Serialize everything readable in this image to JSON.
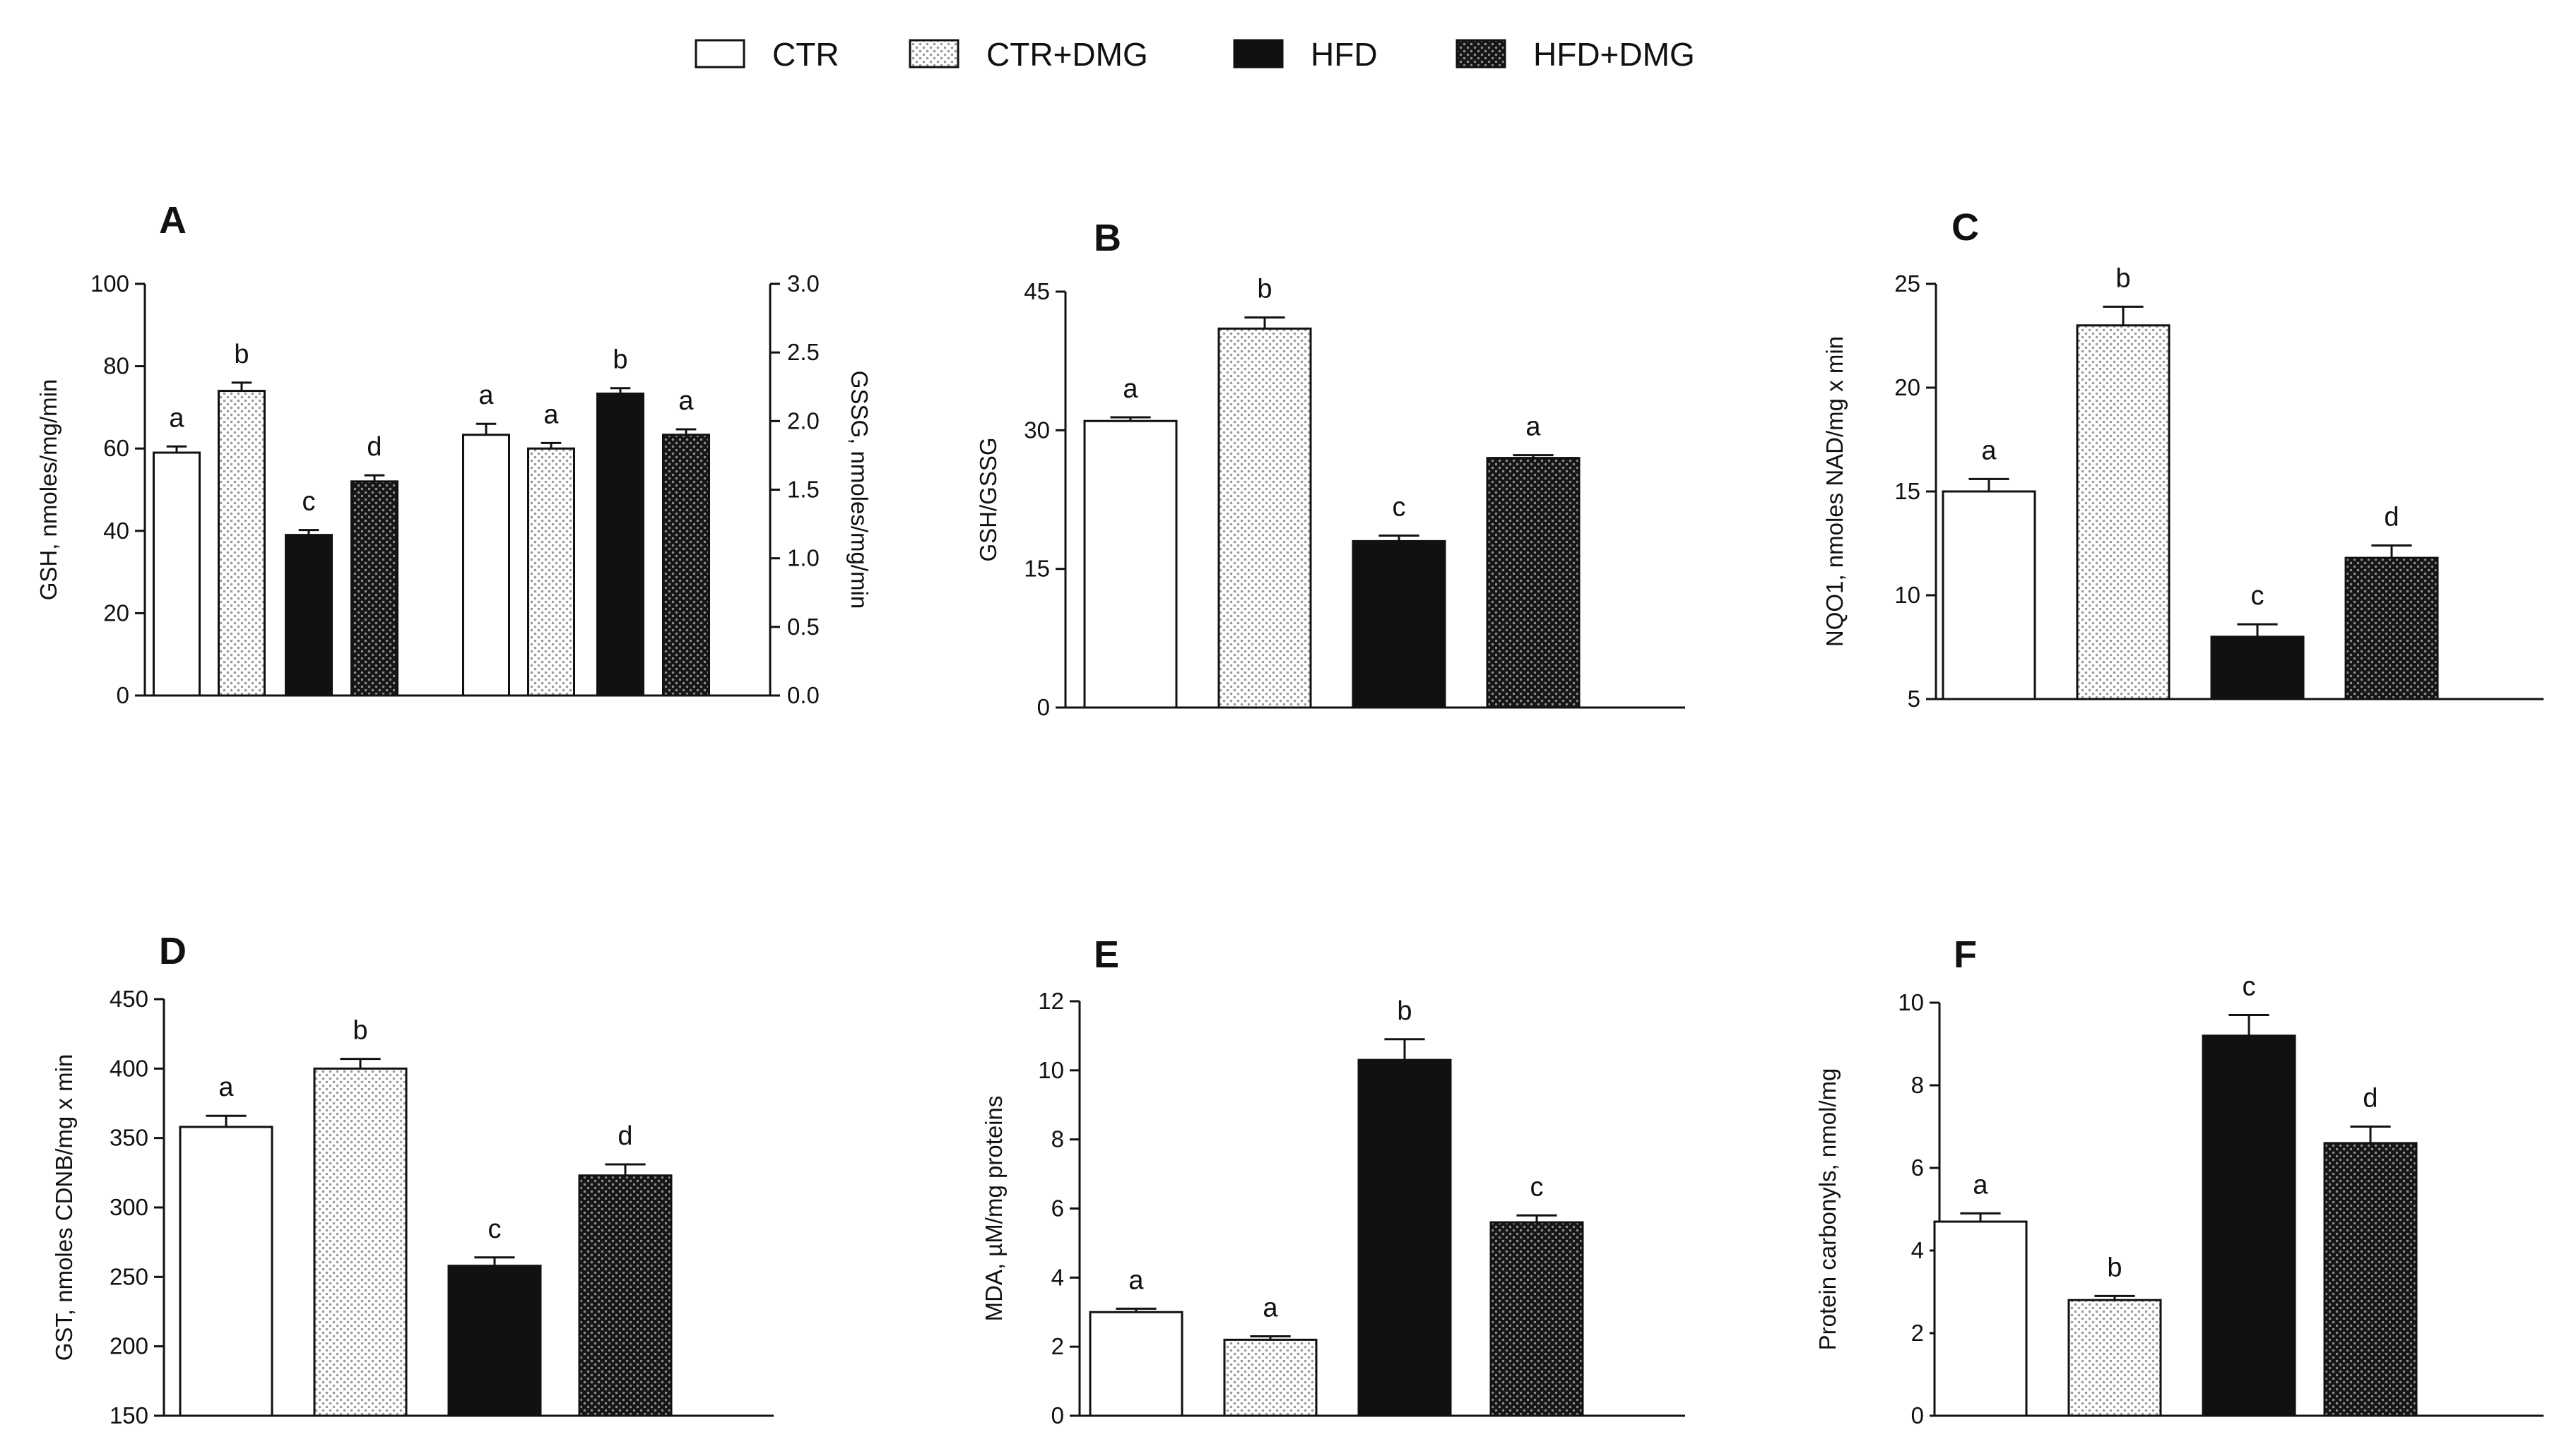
{
  "colors": {
    "black": "#111111",
    "white": "#ffffff",
    "light_pattern": "#bdbdbd",
    "dark_pattern": "#8a8a8a"
  },
  "legend": [
    {
      "label": "CTR",
      "pattern": "white"
    },
    {
      "label": "CTR+DMG",
      "pattern": "light"
    },
    {
      "label": "HFD",
      "pattern": "black"
    },
    {
      "label": "HFD+DMG",
      "pattern": "dark"
    }
  ],
  "chart_data": [
    {
      "panel": "A",
      "type": "bar",
      "categories": [
        "CTR",
        "CTR+DMG",
        "HFD",
        "HFD+DMG"
      ],
      "series": [
        {
          "name": "GSH",
          "axis": "left",
          "values": [
            59,
            74,
            39,
            52
          ],
          "errors": [
            1.5,
            2,
            1.2,
            1.5
          ],
          "letters": [
            "a",
            "b",
            "c",
            "d"
          ]
        },
        {
          "name": "GSSG",
          "axis": "right",
          "values": [
            1.9,
            1.8,
            2.2,
            1.9
          ],
          "errors": [
            0.08,
            0.04,
            0.04,
            0.04
          ],
          "letters": [
            "a",
            "a",
            "b",
            "a"
          ]
        }
      ],
      "ylabel": "GSH, nmoles/mg/min",
      "ylim": [
        0,
        100
      ],
      "yticks": [
        "0",
        "20",
        "40",
        "60",
        "80",
        "100"
      ],
      "y2label": "GSSG, nmoles/mg/min",
      "y2lim": [
        0,
        3.0
      ],
      "y2ticks": [
        "0.0",
        "0.5",
        "1.0",
        "1.5",
        "2.0",
        "2.5",
        "3.0"
      ]
    },
    {
      "panel": "B",
      "type": "bar",
      "categories": [
        "CTR",
        "CTR+DMG",
        "HFD",
        "HFD+DMG"
      ],
      "values": [
        31,
        41,
        18,
        27
      ],
      "errors": [
        0.4,
        1.2,
        0.6,
        0.3
      ],
      "letters": [
        "a",
        "b",
        "c",
        "a"
      ],
      "ylabel": "GSH/GSSG",
      "ylim": [
        0,
        45
      ],
      "yticks": [
        "0",
        "15",
        "30",
        "45"
      ]
    },
    {
      "panel": "C",
      "type": "bar",
      "categories": [
        "CTR",
        "CTR+DMG",
        "HFD",
        "HFD+DMG"
      ],
      "values": [
        15,
        23,
        8,
        11.8
      ],
      "errors": [
        0.6,
        0.9,
        0.6,
        0.6
      ],
      "letters": [
        "a",
        "b",
        "c",
        "d"
      ],
      "ylabel": "NQO1, nmoles NAD/mg x min",
      "ylim": [
        5,
        25
      ],
      "yticks": [
        "5",
        "10",
        "15",
        "20",
        "25"
      ]
    },
    {
      "panel": "D",
      "type": "bar",
      "categories": [
        "CTR",
        "CTR+DMG",
        "HFD",
        "HFD+DMG"
      ],
      "values": [
        358,
        400,
        258,
        323
      ],
      "errors": [
        8,
        7,
        6,
        8
      ],
      "letters": [
        "a",
        "b",
        "c",
        "d"
      ],
      "ylabel": "GST, nmoles CDNB/mg x min",
      "ylim": [
        150,
        450
      ],
      "yticks": [
        "150",
        "200",
        "250",
        "300",
        "350",
        "400",
        "450"
      ]
    },
    {
      "panel": "E",
      "type": "bar",
      "categories": [
        "CTR",
        "CTR+DMG",
        "HFD",
        "HFD+DMG"
      ],
      "values": [
        3.0,
        2.2,
        10.3,
        5.6
      ],
      "errors": [
        0.1,
        0.1,
        0.6,
        0.2
      ],
      "letters": [
        "a",
        "a",
        "b",
        "c"
      ],
      "ylabel": "MDA, µM/mg proteins",
      "ylim": [
        0,
        12
      ],
      "yticks": [
        "0",
        "2",
        "4",
        "6",
        "8",
        "10",
        "12"
      ]
    },
    {
      "panel": "F",
      "type": "bar",
      "categories": [
        "CTR",
        "CTR+DMG",
        "HFD",
        "HFD+DMG"
      ],
      "values": [
        4.7,
        2.8,
        9.2,
        6.6
      ],
      "errors": [
        0.2,
        0.1,
        0.5,
        0.4
      ],
      "letters": [
        "a",
        "b",
        "c",
        "d"
      ],
      "ylabel": "Protein carbonyls, nmol/mg",
      "ylim": [
        0,
        10
      ],
      "yticks": [
        "0",
        "2",
        "4",
        "6",
        "8",
        "10"
      ]
    }
  ]
}
